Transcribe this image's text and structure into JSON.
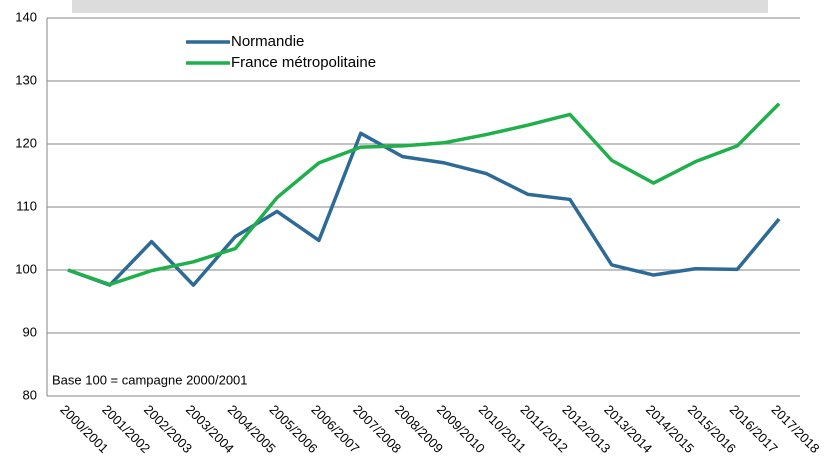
{
  "chart_data": {
    "type": "line",
    "categories": [
      "2000/2001",
      "2001/2002",
      "2002/2003",
      "2003/2004",
      "2004/2005",
      "2005/2006",
      "2006/2007",
      "2007/2008",
      "2008/2009",
      "2009/2010",
      "2010/2011",
      "2011/2012",
      "2012/2013",
      "2013/2014",
      "2014/2015",
      "2015/2016",
      "2016/2017",
      "2017/2018"
    ],
    "series": [
      {
        "name": "Normandie",
        "color": "#2e6a96",
        "values": [
          100,
          97.6,
          104.5,
          97.6,
          105.3,
          109.3,
          104.7,
          121.7,
          118,
          117,
          115.3,
          112,
          111.2,
          100.8,
          99.2,
          100.2,
          100.1,
          108.1
        ]
      },
      {
        "name": "France métropolitaine",
        "color": "#1fb04b",
        "values": [
          100,
          97.7,
          99.9,
          101.3,
          103.4,
          111.5,
          117,
          119.5,
          119.7,
          120.2,
          121.5,
          123,
          124.7,
          117.4,
          113.8,
          117.2,
          119.7,
          126.4
        ]
      }
    ],
    "ylim": [
      80,
      140
    ],
    "yticks": [
      80,
      90,
      100,
      110,
      120,
      130,
      140
    ],
    "grid": true,
    "annotation": "Base 100 = campagne 2000/2001"
  }
}
